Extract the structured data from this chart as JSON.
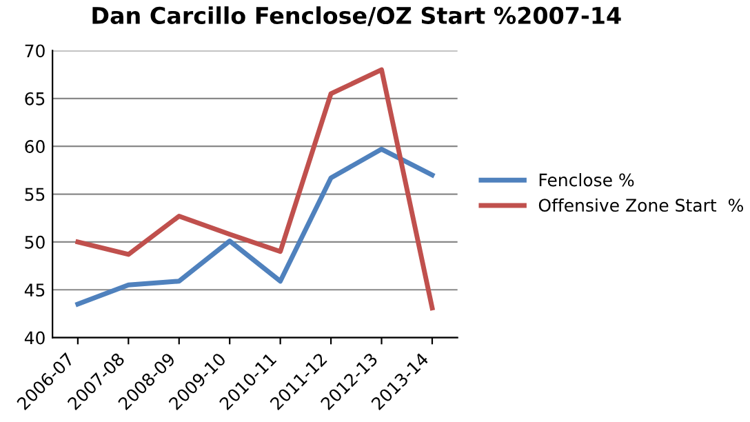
{
  "chart_data": {
    "type": "line",
    "title": "Dan Carcillo Fenclose/OZ Start %2007-14",
    "categories": [
      "2006-07",
      "2007-08",
      "2008-09",
      "2009-10",
      "2010-11",
      "2011-12",
      "2012-13",
      "2013-14"
    ],
    "series": [
      {
        "name": "Fenclose %",
        "color": "#4f81bd",
        "values": [
          43.5,
          45.5,
          45.9,
          50.1,
          45.9,
          56.7,
          59.7,
          57.0
        ]
      },
      {
        "name": "Offensive Zone Start  %",
        "color": "#c0504d",
        "values": [
          50.0,
          48.7,
          52.7,
          50.8,
          49.0,
          65.5,
          68.0,
          43.1
        ]
      }
    ],
    "ylim": [
      40,
      70
    ],
    "yticks": [
      40,
      45,
      50,
      55,
      60,
      65,
      70
    ],
    "grid": "y",
    "legend": "right",
    "marker": "none",
    "line_style": "solid"
  }
}
